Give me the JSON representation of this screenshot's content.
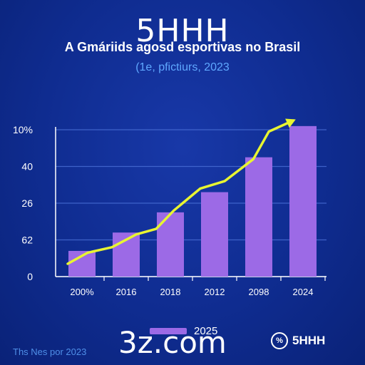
{
  "watermark_top": "5HHH",
  "watermark_bottom": "3z.com",
  "logo": {
    "icon": "circle-logo-icon",
    "mark": "%",
    "text": "5HHH"
  },
  "footnote": "Ths Nes por 2023",
  "legend": {
    "label": "2025"
  },
  "colors": {
    "background": "#0f2c90",
    "bar": "#9c6ae6",
    "line": "#e8f531",
    "grid": "#4a6fd6",
    "axis": "#ffffff",
    "subtitle": "#5fa8ff"
  },
  "chart_data": {
    "type": "bar",
    "title": "A Gmáriids agosd esportivas no Brasil",
    "subtitle": "(1e, pfictiurs, 2023",
    "categories": [
      "200%",
      "2016",
      "2018",
      "2012",
      "2098",
      "2024"
    ],
    "y_tick_labels": [
      "0",
      "62",
      "26",
      "40",
      "10%"
    ],
    "ylim": [
      0,
      4
    ],
    "grid": true,
    "series": [
      {
        "name": "2025",
        "type": "bar",
        "values": [
          0.7,
          1.2,
          1.75,
          2.3,
          3.25,
          4.1
        ]
      },
      {
        "type": "line",
        "x": [
          0,
          0.45,
          1,
          1.55,
          2,
          2.4,
          3,
          3.55,
          4.2,
          4.55,
          5.1
        ],
        "values": [
          0.35,
          0.65,
          0.8,
          1.15,
          1.3,
          1.8,
          2.4,
          2.6,
          3.2,
          3.95,
          4.25
        ]
      }
    ],
    "legend_position": "bottom-center"
  }
}
